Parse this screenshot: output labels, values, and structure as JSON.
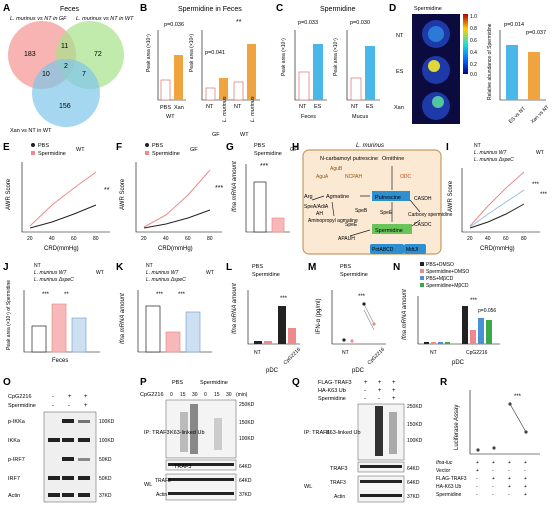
{
  "panels": {
    "A": {
      "letter": "A",
      "title": "Feces",
      "sets": [
        "L. murinus vs NT in GF",
        "L. murinus vs NT in WT",
        "Xan vs NT in WT"
      ],
      "regions": {
        "a_only": "183",
        "b_only": "72",
        "c_only": "156",
        "ab": "11",
        "ac": "10",
        "bc": "7",
        "abc": "2"
      }
    },
    "B": {
      "letter": "B",
      "title": "Spermidine in Feces",
      "ylabel": "Peak area (×10⁷)",
      "ylabel2": "Peak area (×10⁶)",
      "pval1": "p=0.036",
      "pval2": "p=0.041",
      "sig": "**",
      "left": {
        "categories": [
          "PBS",
          "Xan"
        ],
        "group": "WT",
        "ticks": [
          "0",
          "2",
          "4",
          "6"
        ]
      },
      "right": {
        "categories": [
          "NT",
          "L. murinus",
          "NT",
          "L. murinus"
        ],
        "groups": [
          "GF",
          "WT"
        ],
        "ticks": [
          "0",
          "5",
          "10",
          "15",
          "20"
        ]
      }
    },
    "C": {
      "letter": "C",
      "title": "Spermidine",
      "pval1": "p=0.033",
      "pval2": "p=0.030",
      "ylabel": "Peak area (×10⁷)",
      "ylabel2": "Peak area (×10⁷)",
      "left": {
        "categories": [
          "NT",
          "ES"
        ],
        "group": "Feces",
        "ticks": [
          "0",
          "2",
          "4",
          "6",
          "8"
        ]
      },
      "right": {
        "categories": [
          "NT",
          "ES"
        ],
        "group": "Mucus",
        "ticks": [
          "0",
          "1",
          "2",
          "3",
          "4"
        ]
      }
    },
    "D": {
      "letter": "D",
      "title": "Spermidine",
      "rows": [
        "NT",
        "ES",
        "Xan"
      ],
      "scale": [
        "1.0",
        "0.8",
        "0.6",
        "0.4",
        "0.2",
        "0.0"
      ],
      "ylabel": "Relative abundance of Spermidine",
      "pval1": "p=0.014",
      "pval2": "p=0.037",
      "cats": [
        "ES vs NT",
        "Xan vs NT"
      ],
      "ticks": [
        "0",
        "1",
        "2",
        "3",
        "4"
      ]
    },
    "E": {
      "letter": "E",
      "legend": [
        "PBS",
        "Spermidine"
      ],
      "group": "WT",
      "xlabel": "CRD(mmHg)",
      "ylabel": "AWR Score",
      "sig": "**",
      "xticks": [
        "20",
        "40",
        "60",
        "80"
      ],
      "yticks": [
        "0",
        "1",
        "2",
        "3",
        "4"
      ]
    },
    "F": {
      "letter": "F",
      "legend": [
        "PBS",
        "Spermidine"
      ],
      "group": "GF",
      "xlabel": "CRD(mmHg)",
      "ylabel": "AWR Score",
      "sig": "***",
      "xticks": [
        "20",
        "40",
        "60",
        "80"
      ],
      "yticks": [
        "0",
        "1",
        "2",
        "3",
        "4"
      ]
    },
    "G": {
      "letter": "G",
      "legend": [
        "PBS",
        "Spermidine"
      ],
      "group": "GF",
      "ylabel": "Ifna mRNA amount",
      "sig": "***",
      "yticks": [
        "0",
        "1",
        "2",
        "3"
      ]
    },
    "H": {
      "letter": "H",
      "title": "L. murinus",
      "nodes": [
        "N-carbamoyl putrescine",
        "Ornithine",
        "Arg",
        "SpeA/AdiA",
        "Agmatine",
        "SpeB",
        "Putrescine",
        "CASDH",
        "Carboxy spermidine",
        "CASDC",
        "Aminopropyl agmatine",
        "APAUH",
        "Spermidine",
        "PotABCD",
        "MdtJI",
        "AguA",
        "NCPAH",
        "ODC",
        "SpeE",
        "AH",
        "AguB",
        "SpeE"
      ]
    },
    "I": {
      "letter": "I",
      "legend": [
        "NT",
        "L. murinus WT",
        "L. murinus ΔspeC"
      ],
      "group": "WT",
      "xlabel": "CRD(mmHg)",
      "ylabel": "AWR Score",
      "sig1": "***",
      "sig2": "***",
      "xticks": [
        "20",
        "40",
        "60",
        "80"
      ],
      "yticks": [
        "0",
        "1",
        "2",
        "3",
        "4"
      ]
    },
    "J": {
      "letter": "J",
      "legend": [
        "NT",
        "L. murinus WT",
        "L. murinus ΔspeC"
      ],
      "group": "WT",
      "ylabel": "Peak area (×10⁷) of Spermidine",
      "xlabel": "Feces",
      "sig1": "***",
      "sig2": "**",
      "yticks": [
        "0",
        "2",
        "4",
        "6",
        "8"
      ]
    },
    "K": {
      "letter": "K",
      "legend": [
        "NT",
        "L. murinus WT",
        "L. murinus ΔspeC"
      ],
      "group": "WT",
      "ylabel": "Ifna mRNA amount",
      "sig1": "***",
      "sig2": "***",
      "yticks": [
        "0",
        "0.5",
        "1.0",
        "1.5",
        "2.0"
      ]
    },
    "L": {
      "letter": "L",
      "legend": [
        "PBS",
        "Spermidine"
      ],
      "ylabel": "Ifna mRNA amount",
      "xcats": [
        "NT",
        "CpG2216"
      ],
      "xgroup": "pDC",
      "sig": "***",
      "yticks": [
        "0",
        "20",
        "40",
        "60"
      ]
    },
    "M": {
      "letter": "M",
      "legend": [
        "PBS",
        "Spermidine"
      ],
      "ylabel": "IFN-α (pg/ml)",
      "xcats": [
        "NT",
        "CpG2216"
      ],
      "xgroup": "pDC",
      "sig": "***",
      "yticks": [
        "0",
        "100",
        "200",
        "300"
      ]
    },
    "N": {
      "letter": "N",
      "legend": [
        "PBS+DMSO",
        "Spermidine+DMSO",
        "PBS+MβCD",
        "Spermidine+MβCD"
      ],
      "ylabel": "Ifna mRNA amount",
      "xcats": [
        "NT",
        "CpG2216"
      ],
      "xgroup": "pDC",
      "sig": "***",
      "pval": "p=0.056",
      "yticks": [
        "0",
        "20",
        "40",
        "60"
      ]
    },
    "O": {
      "letter": "O",
      "conditions": [
        "CpG2216",
        "Spermidine"
      ],
      "signs": [
        [
          "-",
          "+",
          "+"
        ],
        [
          "-",
          "-",
          "+"
        ]
      ],
      "rows": [
        "p-IKKa",
        "IKKa",
        "p-IRF7",
        "IRF7",
        "Actin"
      ],
      "markers": [
        "100KD",
        "100KD",
        "50KD",
        "50KD",
        "37KD"
      ]
    },
    "P": {
      "letter": "P",
      "groups": [
        "PBS",
        "Spermidine"
      ],
      "cond": "CpG2216",
      "times": [
        "0",
        "15",
        "30",
        "0",
        "15",
        "30"
      ],
      "time_unit": "(min)",
      "ip_label": "IP: TRAF3",
      "ub_label": "K63-linked Ub",
      "traf3": "TRAF3",
      "wl": "WL",
      "markers": [
        "250KD",
        "150KD",
        "100KD",
        "64KD",
        "64KD",
        "37KD"
      ],
      "rows": [
        "TRAF3",
        "Actin"
      ]
    },
    "Q": {
      "letter": "Q",
      "conditions": [
        "FLAG-TRAF3",
        "HA-K63 Ub",
        "Spermidine"
      ],
      "signs": [
        [
          "+",
          "+",
          "+"
        ],
        [
          "-",
          "+",
          "+"
        ],
        [
          "-",
          "-",
          "+"
        ]
      ],
      "ip_label": "IP: TRAF3",
      "ub_label": "K63-linked Ub",
      "traf3": "TRAF3",
      "wl": "WL",
      "markers": [
        "250KD",
        "150KD",
        "100KD",
        "64KD",
        "64KD",
        "37KD"
      ],
      "rows": [
        "TRAF3",
        "Actin"
      ]
    },
    "R": {
      "letter": "R",
      "ylabel": "Luciferase Assay",
      "sig": "***",
      "yticks": [
        "0",
        "5",
        "10",
        "15",
        "20"
      ],
      "conditions": [
        "Ifna-luc",
        "Vector",
        "FLAG-TRAF3",
        "HA-K63 Ub",
        "Spermidine"
      ],
      "signs": [
        [
          "+",
          "+",
          "+",
          "+"
        ],
        [
          "+",
          "-",
          "-",
          "-"
        ],
        [
          "-",
          "+",
          "+",
          "+"
        ],
        [
          "-",
          "-",
          "+",
          "+"
        ],
        [
          "-",
          "-",
          "-",
          "+"
        ]
      ]
    }
  },
  "colors": {
    "pbs": "#222222",
    "spermidine": "#f08a8a",
    "orange": "#f0a440",
    "blue": "#4a90d9",
    "green": "#3aaa48",
    "cyan": "#49b8e8",
    "grey": "#cccccc"
  }
}
